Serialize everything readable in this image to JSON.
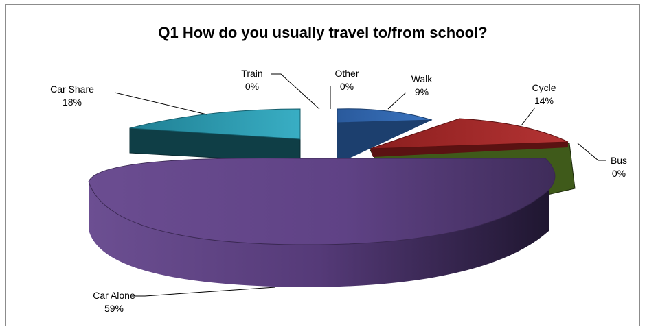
{
  "chart_data": {
    "type": "pie",
    "style": "3d-exploded",
    "title": "Q1 How do you usually travel to/from school?",
    "categories": [
      "Walk",
      "Cycle",
      "Bus",
      "Car Alone",
      "Car Share",
      "Train",
      "Other"
    ],
    "values": [
      9,
      14,
      0,
      59,
      18,
      0,
      0
    ],
    "labels": [
      {
        "name": "Walk",
        "pct": "9%"
      },
      {
        "name": "Cycle",
        "pct": "14%"
      },
      {
        "name": "Bus",
        "pct": "0%"
      },
      {
        "name": "Car Alone",
        "pct": "59%"
      },
      {
        "name": "Car Share",
        "pct": "18%"
      },
      {
        "name": "Train",
        "pct": "0%"
      },
      {
        "name": "Other",
        "pct": "0%"
      }
    ],
    "colors": {
      "Walk": "#2e64a8",
      "Cycle": "#a52a2a",
      "Bus": "#5c7a26",
      "Car Alone": "#6a4a8e",
      "Car Share": "#2a9bb0"
    },
    "legend": "none"
  }
}
